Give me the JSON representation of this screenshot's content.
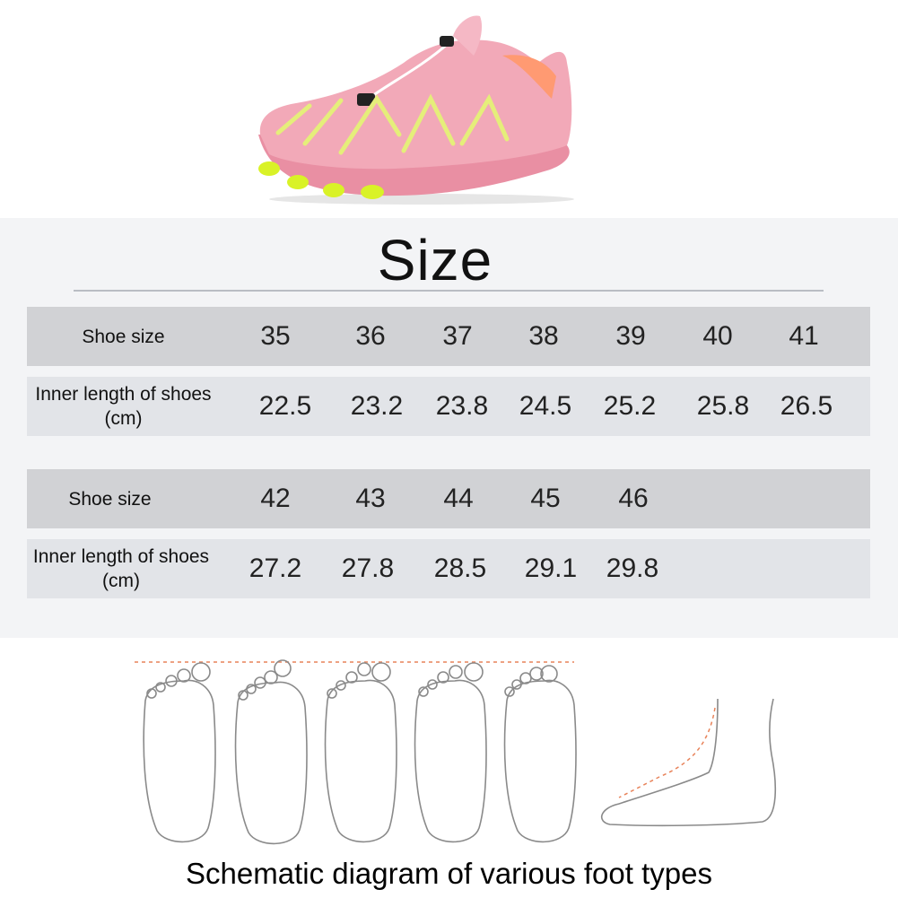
{
  "title": "Size",
  "tables": [
    {
      "header_label": "Shoe size",
      "length_label": "Inner length of shoes (cm)",
      "sizes": [
        "35",
        "36",
        "37",
        "38",
        "39",
        "40",
        "41"
      ],
      "lengths": [
        "22.5",
        "23.2",
        "23.8",
        "24.5",
        "25.2",
        "25.8",
        "26.5"
      ]
    },
    {
      "header_label": "Shoe size",
      "length_label": "Inner length of shoes (cm)",
      "sizes": [
        "42",
        "43",
        "44",
        "45",
        "46"
      ],
      "lengths": [
        "27.2",
        "27.8",
        "28.5",
        "29.1",
        "29.8"
      ]
    }
  ],
  "caption": "Schematic diagram of various foot types",
  "colors": {
    "shoe_upper": "#f2a9b8",
    "shoe_sole_accent": "#d9f227",
    "header_row": "#d1d2d5",
    "body_row": "#e2e4e8",
    "guide_line": "#e8835a"
  }
}
